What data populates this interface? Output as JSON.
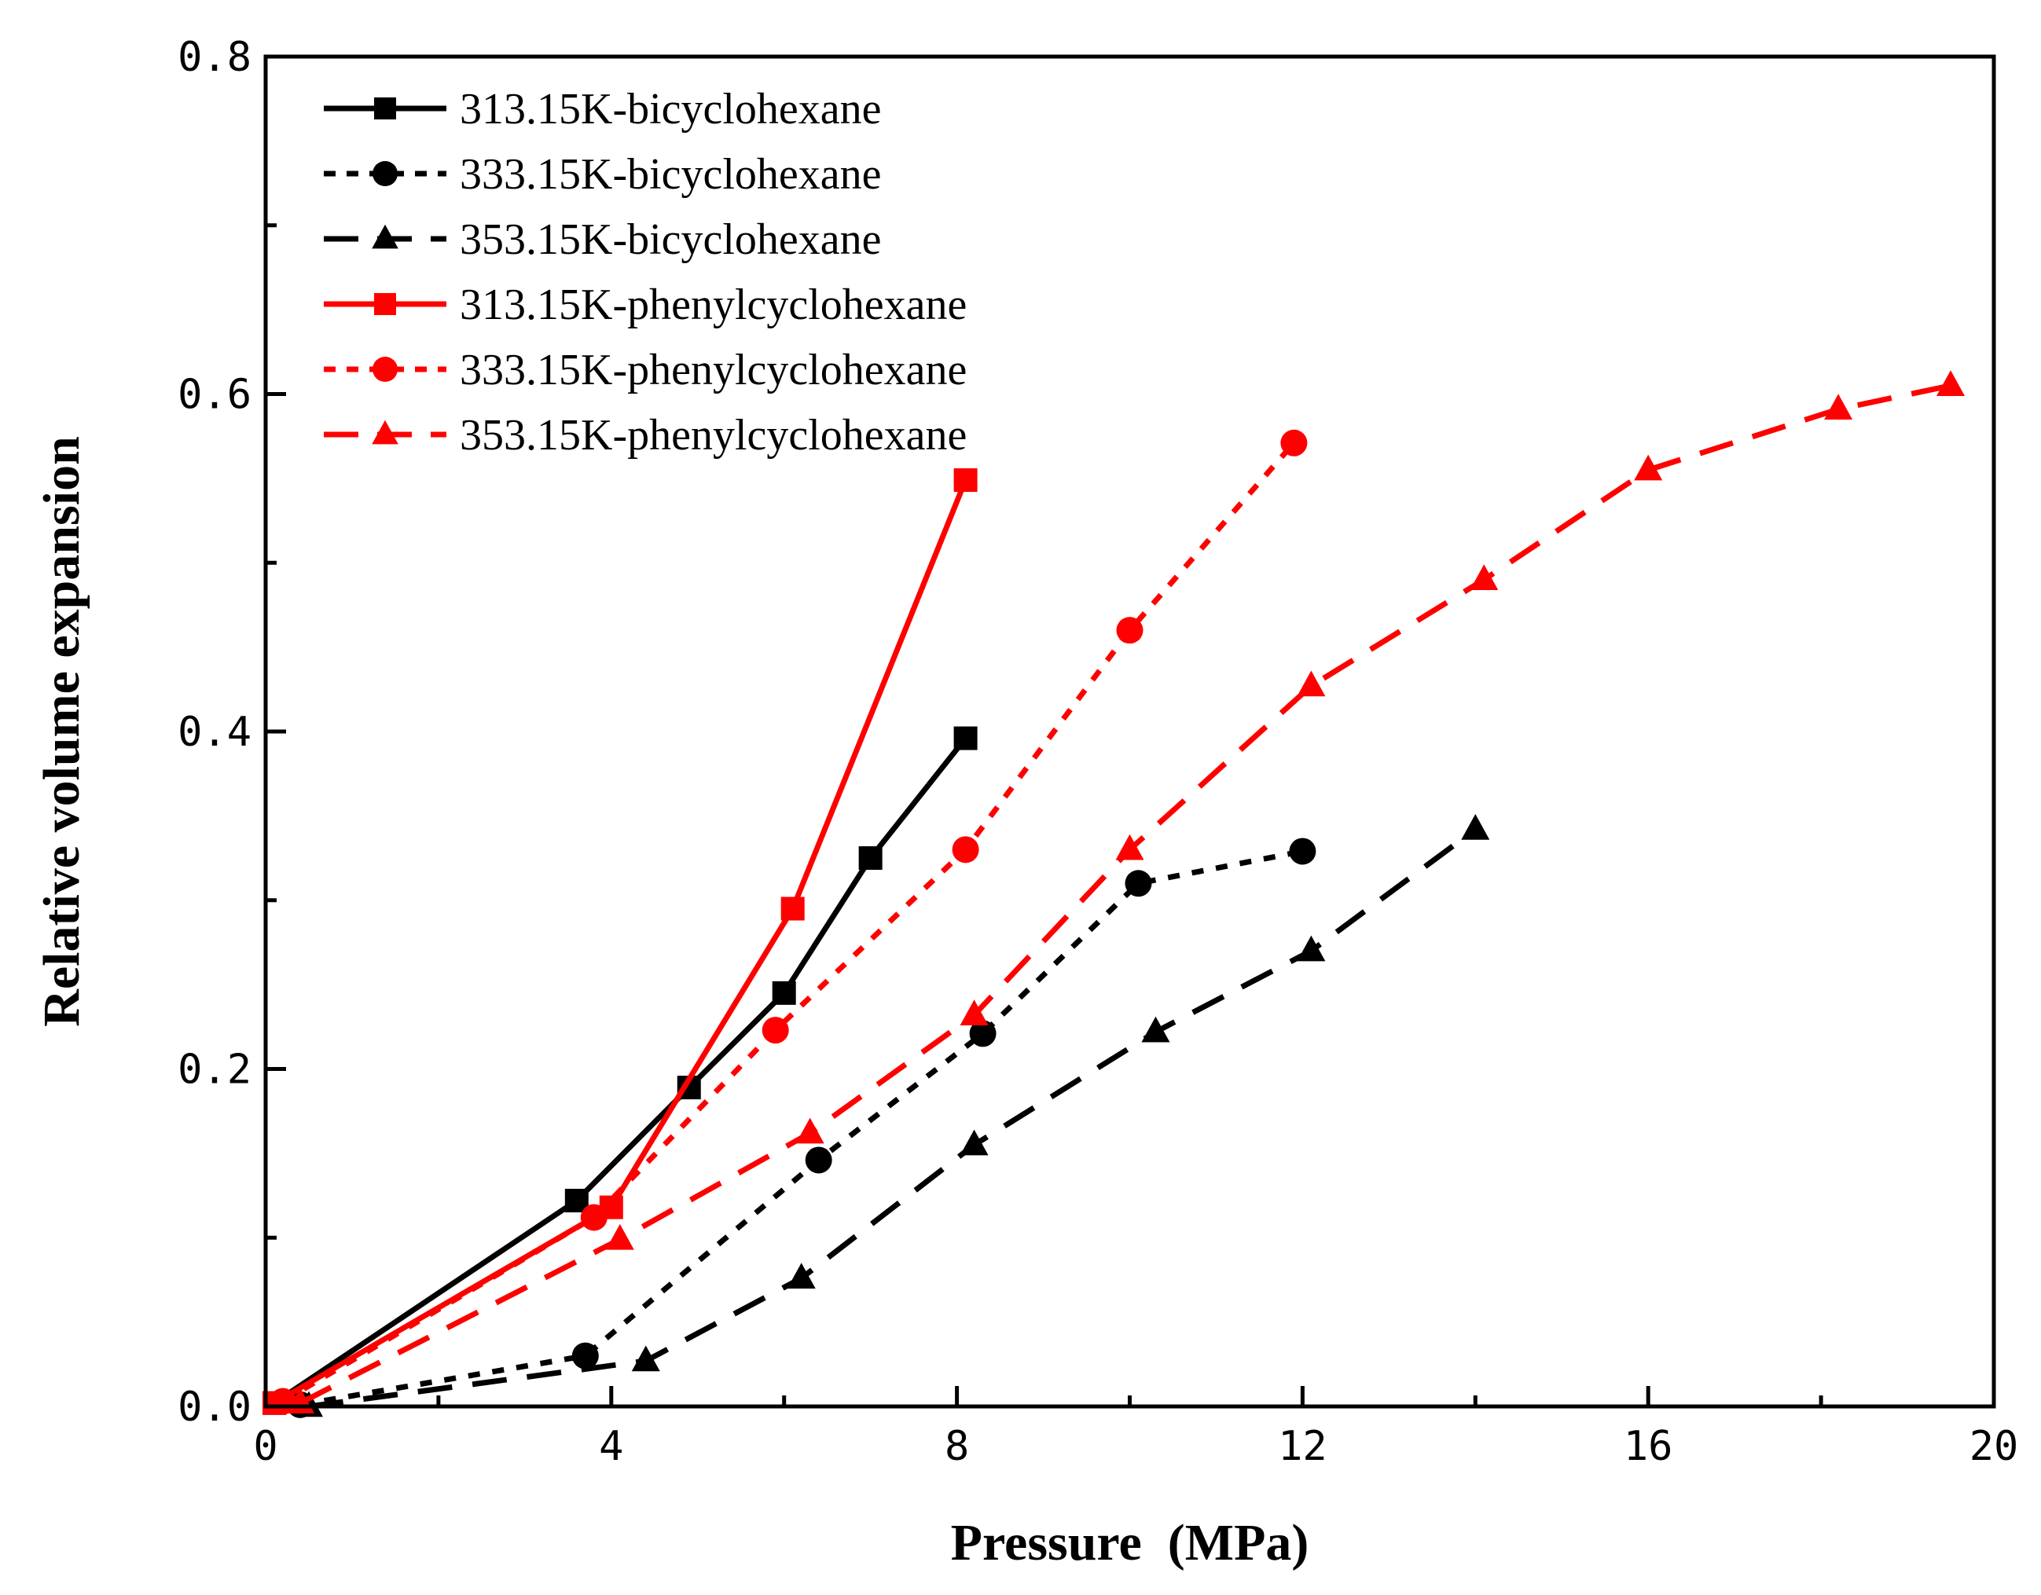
{
  "chart_data": {
    "type": "line",
    "title": "",
    "xlabel": "Pressure  (MPa)",
    "ylabel": "Relative volume expansion",
    "xlim": [
      0,
      20
    ],
    "ylim": [
      0,
      0.8
    ],
    "x_ticks": [
      0,
      4,
      8,
      12,
      16,
      20
    ],
    "x_tick_labels": [
      "0",
      "4",
      "8",
      "12",
      "16",
      "20"
    ],
    "y_ticks": [
      0.0,
      0.2,
      0.4,
      0.6,
      0.8
    ],
    "y_tick_labels": [
      "0.0",
      "0.2",
      "0.4",
      "0.6",
      "0.8"
    ],
    "grid": false,
    "legend_position": "top-left",
    "series": [
      {
        "name": "313.15K-bicyclohexane",
        "color": "#000000",
        "line_style": "solid",
        "marker": "square",
        "x": [
          0.1,
          3.6,
          4.9,
          6.0,
          7.0,
          8.1
        ],
        "y": [
          0.002,
          0.122,
          0.189,
          0.245,
          0.325,
          0.396
        ]
      },
      {
        "name": "333.15K-bicyclohexane",
        "color": "#000000",
        "line_style": "dotted",
        "marker": "circle",
        "x": [
          0.4,
          3.7,
          6.4,
          8.3,
          10.1,
          12.0
        ],
        "y": [
          0.001,
          0.03,
          0.146,
          0.221,
          0.31,
          0.329
        ]
      },
      {
        "name": "353.15K-bicyclohexane",
        "color": "#000000",
        "line_style": "dashed",
        "marker": "triangle",
        "x": [
          0.5,
          4.4,
          6.2,
          8.2,
          10.3,
          12.1,
          14.0
        ],
        "y": [
          0.0,
          0.027,
          0.076,
          0.155,
          0.222,
          0.27,
          0.342
        ]
      },
      {
        "name": "313.15K-phenylcyclohexane",
        "color": "#ff0000",
        "line_style": "solid",
        "marker": "square",
        "x": [
          0.1,
          4.0,
          6.1,
          8.1
        ],
        "y": [
          0.002,
          0.118,
          0.295,
          0.549
        ]
      },
      {
        "name": "333.15K-phenylcyclohexane",
        "color": "#ff0000",
        "line_style": "dotted",
        "marker": "circle",
        "x": [
          0.2,
          3.8,
          5.9,
          8.1,
          10.0,
          11.9
        ],
        "y": [
          0.003,
          0.112,
          0.223,
          0.33,
          0.46,
          0.571
        ]
      },
      {
        "name": "353.15K-phenylcyclohexane",
        "color": "#ff0000",
        "line_style": "dashed",
        "marker": "triangle",
        "x": [
          0.4,
          4.1,
          6.3,
          8.2,
          10.0,
          12.1,
          14.1,
          16.0,
          18.2,
          19.5
        ],
        "y": [
          0.002,
          0.099,
          0.162,
          0.232,
          0.33,
          0.427,
          0.49,
          0.555,
          0.591,
          0.605
        ]
      }
    ]
  }
}
